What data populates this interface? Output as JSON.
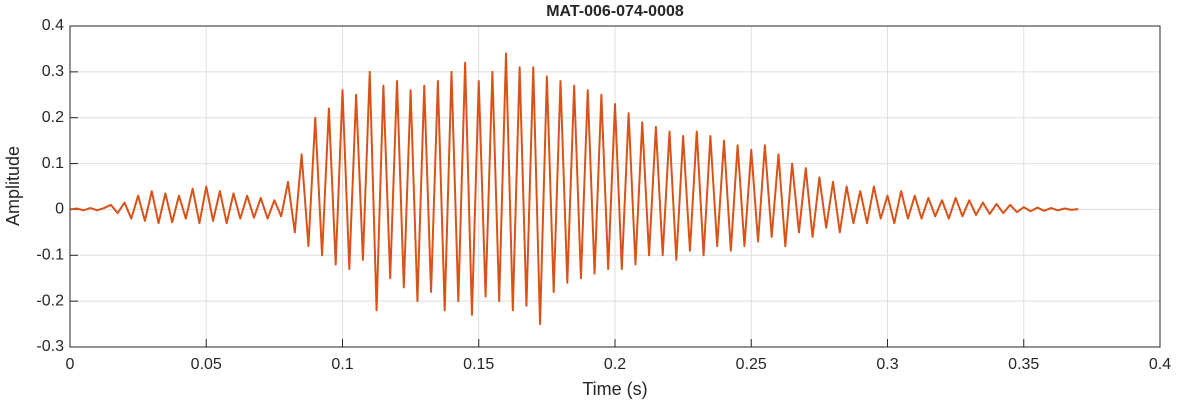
{
  "chart_data": {
    "type": "line",
    "title": "MAT-006-074-0008",
    "x_label": "Time (s)",
    "y_label": "Amplitude",
    "color": "#d95319",
    "grid": true,
    "xlim": [
      0,
      0.4
    ],
    "xticks": [
      0,
      0.05,
      0.1,
      0.15,
      0.2,
      0.25,
      0.3,
      0.35,
      0.4
    ],
    "ylim": [
      -0.3,
      0.4
    ],
    "yticks": [
      -0.3,
      -0.2,
      -0.1,
      0,
      0.1,
      0.2,
      0.3,
      0.4
    ],
    "x": [
      0,
      0.0025,
      0.005,
      0.0075,
      0.01,
      0.0125,
      0.015,
      0.0175,
      0.02,
      0.0225,
      0.025,
      0.0275,
      0.03,
      0.0325,
      0.035,
      0.0375,
      0.04,
      0.0425,
      0.045,
      0.0475,
      0.05,
      0.0525,
      0.055,
      0.0575,
      0.06,
      0.0625,
      0.065,
      0.0675,
      0.07,
      0.0725,
      0.075,
      0.0775,
      0.08,
      0.0825,
      0.085,
      0.0875,
      0.09,
      0.0925,
      0.095,
      0.0975,
      0.1,
      0.1025,
      0.105,
      0.1075,
      0.11,
      0.1125,
      0.115,
      0.1175,
      0.12,
      0.1225,
      0.125,
      0.1275,
      0.13,
      0.1325,
      0.135,
      0.1375,
      0.14,
      0.1425,
      0.145,
      0.1475,
      0.15,
      0.1525,
      0.155,
      0.1575,
      0.16,
      0.1625,
      0.165,
      0.1675,
      0.17,
      0.1725,
      0.175,
      0.1775,
      0.18,
      0.1825,
      0.185,
      0.1875,
      0.19,
      0.1925,
      0.195,
      0.1975,
      0.2,
      0.2025,
      0.205,
      0.2075,
      0.21,
      0.2125,
      0.215,
      0.2175,
      0.22,
      0.2225,
      0.225,
      0.2275,
      0.23,
      0.2325,
      0.235,
      0.2375,
      0.24,
      0.2425,
      0.245,
      0.2475,
      0.25,
      0.2525,
      0.255,
      0.2575,
      0.26,
      0.2625,
      0.265,
      0.2675,
      0.27,
      0.2725,
      0.275,
      0.2775,
      0.28,
      0.2825,
      0.285,
      0.2875,
      0.29,
      0.2925,
      0.295,
      0.2975,
      0.3,
      0.3025,
      0.305,
      0.3075,
      0.31,
      0.3125,
      0.315,
      0.3175,
      0.32,
      0.3225,
      0.325,
      0.3275,
      0.33,
      0.3325,
      0.335,
      0.3375,
      0.34,
      0.3425,
      0.345,
      0.3475,
      0.35,
      0.3525,
      0.355,
      0.3575,
      0.36,
      0.3625,
      0.365,
      0.3675,
      0.37
    ],
    "values": [
      0,
      0.002,
      -0.002,
      0.003,
      -0.002,
      0.003,
      0.01,
      -0.008,
      0.015,
      -0.02,
      0.03,
      -0.025,
      0.04,
      -0.03,
      0.035,
      -0.028,
      0.03,
      -0.02,
      0.045,
      -0.03,
      0.05,
      -0.025,
      0.04,
      -0.03,
      0.035,
      -0.02,
      0.03,
      -0.018,
      0.025,
      -0.02,
      0.02,
      -0.015,
      0.06,
      -0.05,
      0.12,
      -0.08,
      0.2,
      -0.1,
      0.22,
      -0.12,
      0.26,
      -0.13,
      0.25,
      -0.11,
      0.3,
      -0.22,
      0.27,
      -0.15,
      0.28,
      -0.17,
      0.26,
      -0.2,
      0.27,
      -0.18,
      0.28,
      -0.22,
      0.3,
      -0.2,
      0.32,
      -0.23,
      0.28,
      -0.19,
      0.3,
      -0.2,
      0.34,
      -0.22,
      0.31,
      -0.21,
      0.31,
      -0.25,
      0.29,
      -0.18,
      0.28,
      -0.16,
      0.27,
      -0.15,
      0.26,
      -0.14,
      0.25,
      -0.13,
      0.23,
      -0.13,
      0.21,
      -0.12,
      0.19,
      -0.1,
      0.18,
      -0.1,
      0.17,
      -0.11,
      0.16,
      -0.09,
      0.17,
      -0.1,
      0.16,
      -0.08,
      0.15,
      -0.09,
      0.14,
      -0.08,
      0.13,
      -0.07,
      0.14,
      -0.06,
      0.12,
      -0.08,
      0.1,
      -0.05,
      0.09,
      -0.06,
      0.07,
      -0.04,
      0.06,
      -0.05,
      0.05,
      -0.03,
      0.04,
      -0.03,
      0.05,
      -0.02,
      0.03,
      -0.03,
      0.04,
      -0.02,
      0.03,
      -0.02,
      0.025,
      -0.015,
      0.02,
      -0.02,
      0.025,
      -0.015,
      0.02,
      -0.012,
      0.015,
      -0.01,
      0.012,
      -0.008,
      0.01,
      -0.006,
      0.005,
      -0.004,
      0.004,
      -0.003,
      0.003,
      -0.002,
      0.002,
      -0.001,
      0.001
    ]
  }
}
